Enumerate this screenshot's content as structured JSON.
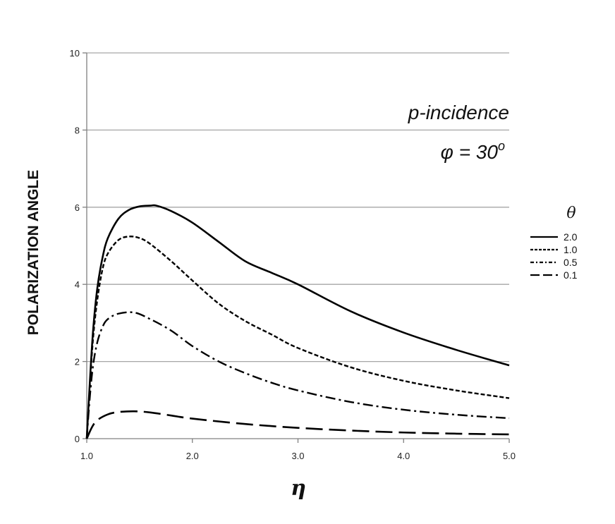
{
  "chart_data": {
    "type": "line",
    "title": "",
    "xlabel": "η",
    "ylabel": "POLARIZATION ANGLE",
    "xlim": [
      1.0,
      5.0
    ],
    "ylim": [
      0,
      10
    ],
    "xticks": [
      1.0,
      2.0,
      3.0,
      4.0,
      5.0
    ],
    "xtick_labels": [
      "1.0",
      "2.0",
      "3.0",
      "4.0",
      "5.0"
    ],
    "yticks": [
      0,
      2,
      4,
      6,
      8,
      10
    ],
    "ytick_labels": [
      "0",
      "2",
      "4",
      "6",
      "8",
      "10"
    ],
    "grid": "horizontal",
    "annotations": {
      "line1": "p-incidence",
      "line2_symbol": "φ",
      "line2_rest": " = 30",
      "line2_sup": "o"
    },
    "legend": {
      "title": "θ",
      "placement": "right"
    },
    "series": [
      {
        "name": "2.0",
        "dash": "solid",
        "x": [
          1.0,
          1.03,
          1.06,
          1.1,
          1.15,
          1.2,
          1.3,
          1.4,
          1.5,
          1.6,
          1.66,
          1.8,
          2.0,
          2.25,
          2.5,
          2.75,
          3.0,
          3.5,
          4.0,
          4.5,
          5.0
        ],
        "y": [
          0.0,
          1.5,
          2.8,
          3.9,
          4.7,
          5.2,
          5.7,
          5.93,
          6.02,
          6.04,
          6.04,
          5.9,
          5.6,
          5.1,
          4.6,
          4.3,
          4.0,
          3.3,
          2.75,
          2.3,
          1.9
        ]
      },
      {
        "name": "1.0",
        "dash": "dash",
        "x": [
          1.0,
          1.03,
          1.06,
          1.1,
          1.15,
          1.2,
          1.3,
          1.4,
          1.5,
          1.6,
          1.8,
          2.0,
          2.25,
          2.5,
          2.75,
          3.0,
          3.5,
          4.0,
          4.5,
          5.0
        ],
        "y": [
          0.0,
          1.4,
          2.6,
          3.6,
          4.4,
          4.8,
          5.15,
          5.24,
          5.2,
          5.05,
          4.6,
          4.1,
          3.5,
          3.05,
          2.7,
          2.35,
          1.85,
          1.5,
          1.25,
          1.05
        ]
      },
      {
        "name": "0.5",
        "dash": "dashdot",
        "x": [
          1.0,
          1.03,
          1.06,
          1.1,
          1.15,
          1.2,
          1.3,
          1.45,
          1.6,
          1.8,
          2.0,
          2.25,
          2.5,
          2.75,
          3.0,
          3.5,
          4.0,
          4.5,
          5.0
        ],
        "y": [
          0.0,
          1.1,
          1.9,
          2.5,
          2.9,
          3.1,
          3.24,
          3.27,
          3.1,
          2.8,
          2.4,
          2.0,
          1.7,
          1.45,
          1.25,
          0.95,
          0.75,
          0.62,
          0.53
        ]
      },
      {
        "name": "0.1",
        "dash": "longdash",
        "x": [
          1.0,
          1.05,
          1.1,
          1.2,
          1.3,
          1.45,
          1.6,
          1.8,
          2.0,
          2.5,
          3.0,
          3.5,
          4.0,
          4.5,
          5.0
        ],
        "y": [
          0.0,
          0.3,
          0.48,
          0.63,
          0.69,
          0.71,
          0.68,
          0.6,
          0.52,
          0.38,
          0.28,
          0.21,
          0.16,
          0.13,
          0.11
        ]
      }
    ],
    "colors": {
      "line": "#000000",
      "grid": "#a6a6a6",
      "axis": "#808080"
    }
  }
}
